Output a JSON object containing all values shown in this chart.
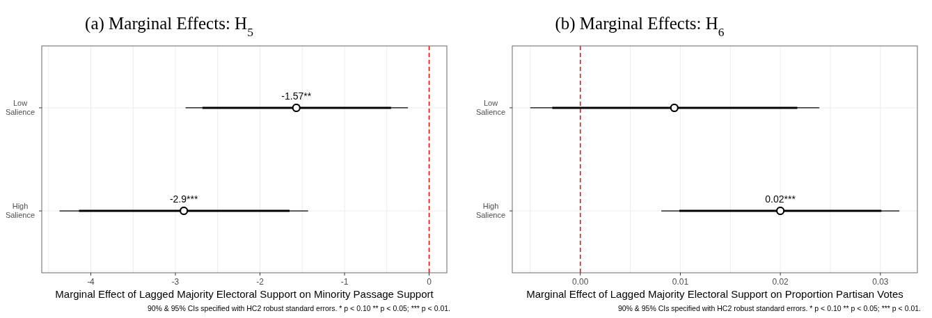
{
  "chart_data": [
    {
      "type": "scatter",
      "orientation": "horizontal",
      "title": "(a) Marginal Effects: H$_{5}$",
      "xlabel": "Marginal Effect of Lagged Majority Electoral Support on Minority Passage Support",
      "categories": [
        "Low Salience",
        "High Salience"
      ],
      "series": [
        {
          "color": "#000000",
          "values": [
            -1.57,
            -2.9
          ],
          "errors": [
            [
              -2.88,
              -0.25
            ],
            [
              -4.37,
              -1.43
            ]
          ]
        },
        {
          "color": "#000000",
          "values": [
            -1.57,
            -2.9
          ],
          "errors": [
            [
              -2.68,
              -0.45
            ],
            [
              -4.14,
              -1.65
            ]
          ],
          "value_labels": [
            "-1.57**",
            "-2.9***"
          ]
        }
      ],
      "xlim": [
        -4.58,
        0.21
      ],
      "xticks": [
        {
          "value": -4.5,
          "label": null
        },
        -4,
        {
          "value": -3.5,
          "label": null
        },
        -3,
        {
          "value": -2.5,
          "label": null
        },
        -2,
        {
          "value": -1.5,
          "label": null
        },
        -1,
        {
          "value": -0.5,
          "label": null
        },
        0
      ],
      "grid": true,
      "marker": "circle",
      "ref_lines": [
        {
          "axis": "x",
          "value": 0,
          "color": "#ff0000",
          "line_style": "dashed"
        }
      ],
      "annotations": [
        "90% & 95% CIs specified with HC2 robust standard errors. * p < 0.10 ** p < 0.05; *** p < 0.01."
      ]
    },
    {
      "type": "scatter",
      "orientation": "horizontal",
      "title": "(b) Marginal Effects: H$_{6}$",
      "xlabel": "Marginal Effect of Lagged Majority Electoral Support on Proportion Partisan Votes",
      "categories": [
        "Low Salience",
        "High Salience"
      ],
      "series": [
        {
          "color": "#000000",
          "values": [
            0.0094,
            0.02
          ],
          "errors": [
            [
              -0.005,
              0.0239
            ],
            [
              0.0081,
              0.0319
            ]
          ]
        },
        {
          "color": "#000000",
          "values": [
            0.0094,
            0.02
          ],
          "errors": [
            [
              -0.0028,
              0.0217
            ],
            [
              0.0099,
              0.0301
            ]
          ],
          "value_labels": [
            null,
            "0.02***"
          ]
        }
      ],
      "xlim": [
        -0.0068,
        0.0337
      ],
      "xticks": [
        {
          "value": -0.005,
          "label": null
        },
        {
          "value": 0,
          "label": "0.00"
        },
        {
          "value": 0.005,
          "label": null
        },
        {
          "value": 0.01,
          "label": "0.01"
        },
        {
          "value": 0.015,
          "label": null
        },
        {
          "value": 0.02,
          "label": "0.02"
        },
        {
          "value": 0.025,
          "label": null
        },
        {
          "value": 0.03,
          "label": "0.03"
        }
      ],
      "grid": true,
      "marker": "circle",
      "ref_lines": [
        {
          "axis": "x",
          "value": 0,
          "color": "#ff0000",
          "line_style": "dashed"
        }
      ],
      "annotations": [
        "90% & 95% CIs specified with HC2 robust standard errors. * p < 0.10 ** p < 0.05; *** p < 0.01."
      ]
    }
  ]
}
